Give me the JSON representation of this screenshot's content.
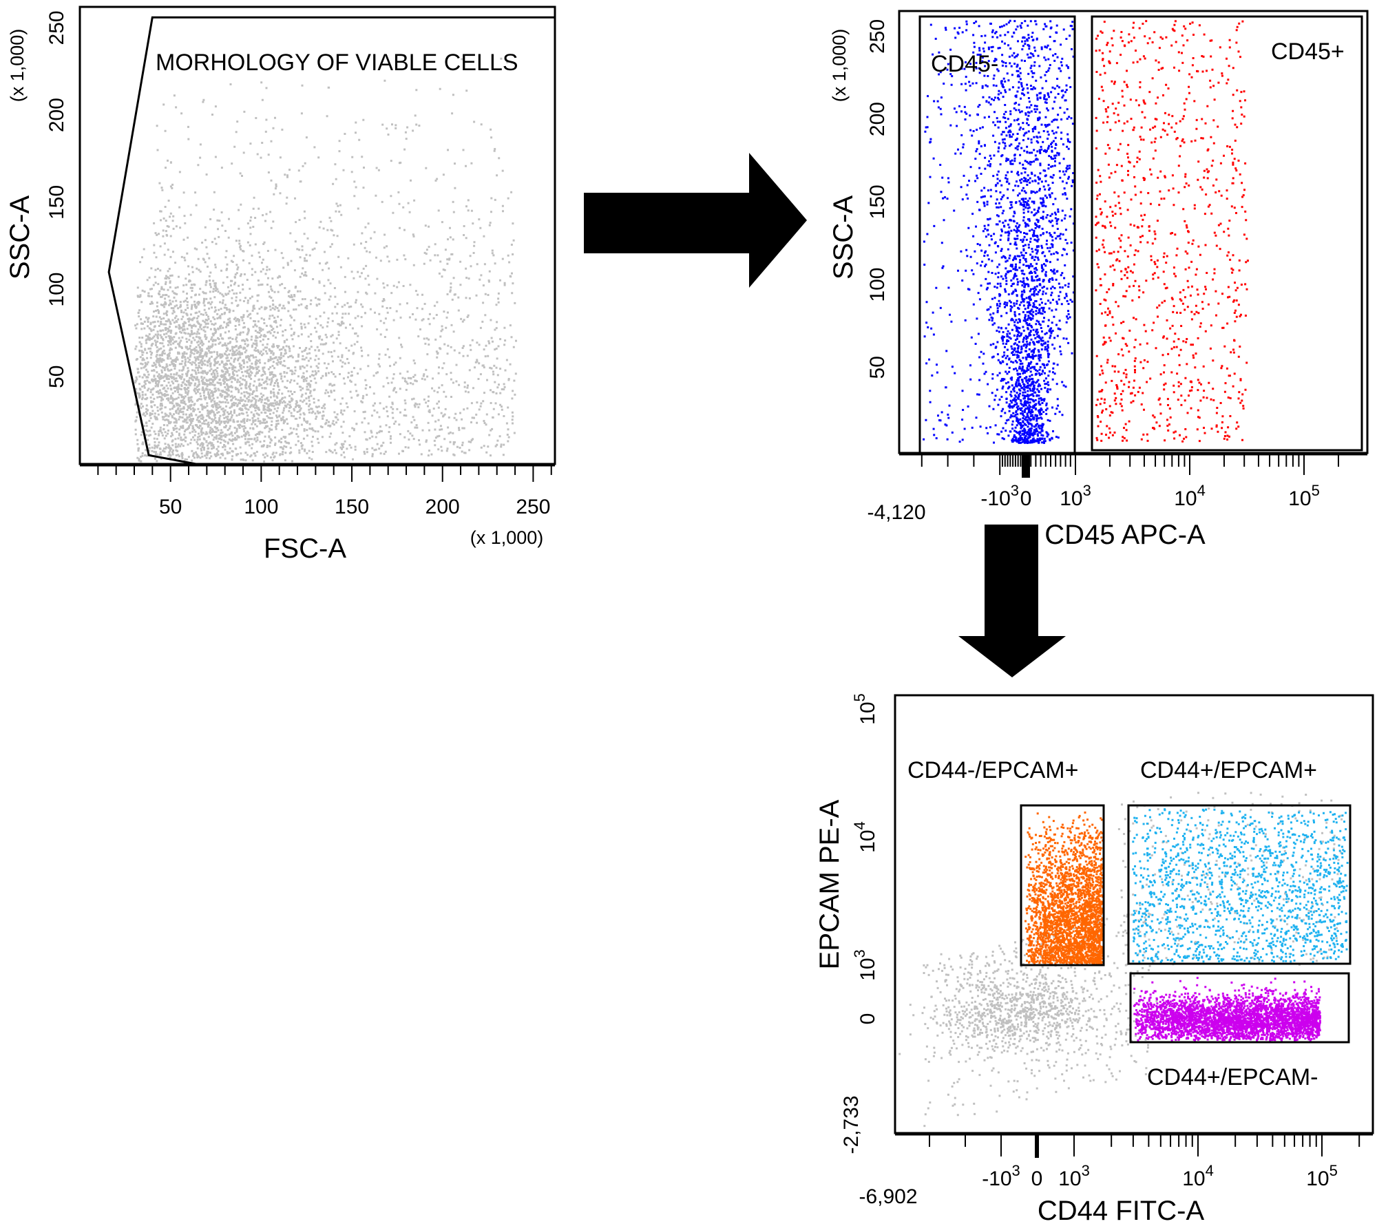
{
  "chart_data": [
    {
      "type": "scatter",
      "title": "",
      "xlabel": "FSC-A",
      "ylabel": "SSC-A",
      "x_unit": "(x 1,000)",
      "y_unit": "(x 1,000)",
      "xlim": [
        0,
        262
      ],
      "ylim": [
        0,
        262
      ],
      "xticks": [
        {
          "v": 50,
          "label": "50"
        },
        {
          "v": 100,
          "label": "100"
        },
        {
          "v": 150,
          "label": "150"
        },
        {
          "v": 200,
          "label": "200"
        },
        {
          "v": 250,
          "label": "250"
        }
      ],
      "yticks": [
        {
          "v": 50,
          "label": "50"
        },
        {
          "v": 100,
          "label": "100"
        },
        {
          "v": 150,
          "label": "150"
        },
        {
          "v": 200,
          "label": "200"
        },
        {
          "v": 250,
          "label": "250"
        }
      ],
      "gate": {
        "name": "MORHOLOGY OF VIABLE CELLS",
        "vertices": [
          [
            38,
            5
          ],
          [
            16,
            110
          ],
          [
            40,
            256
          ],
          [
            262,
            256
          ],
          [
            262,
            0
          ],
          [
            64,
            0
          ]
        ]
      },
      "population": {
        "color": "#c0c0c0",
        "center": [
          65,
          45
        ],
        "spread": [
          35,
          35
        ]
      }
    },
    {
      "type": "scatter",
      "title": "",
      "xlabel": "CD45 APC-A",
      "ylabel": "SSC-A",
      "y_unit": "(x 1,000)",
      "x_min_label": "-4,120",
      "x_scale": "biexponential",
      "ylim": [
        0,
        262
      ],
      "xticks": [
        {
          "v": -1000,
          "label": "-10",
          "exp": "3"
        },
        {
          "v": 0,
          "label": "0"
        },
        {
          "v": 1000,
          "label": "10",
          "exp": "3"
        },
        {
          "v": 10000,
          "label": "10",
          "exp": "4"
        },
        {
          "v": 100000,
          "label": "10",
          "exp": "5"
        }
      ],
      "yticks": [
        {
          "v": 50,
          "label": "50"
        },
        {
          "v": 100,
          "label": "100"
        },
        {
          "v": 150,
          "label": "150"
        },
        {
          "v": 200,
          "label": "200"
        },
        {
          "v": 250,
          "label": "250"
        }
      ],
      "gates": [
        {
          "name": "CD45-",
          "color": "#0000ff",
          "x": [
            -4000,
            1000
          ],
          "y": [
            0,
            262
          ]
        },
        {
          "name": "CD45+",
          "color": "#ff0000",
          "x": [
            1200,
            200000
          ],
          "y": [
            0,
            262
          ]
        }
      ]
    },
    {
      "type": "scatter",
      "title": "",
      "xlabel": "CD44 FITC-A",
      "ylabel": "EPCAM PE-A",
      "x_min_label": "-6,902",
      "y_min_label": "-2,733",
      "x_scale": "biexponential",
      "y_scale": "biexponential",
      "xticks": [
        {
          "v": -1000,
          "label": "-10",
          "exp": "3"
        },
        {
          "v": 0,
          "label": "0"
        },
        {
          "v": 1000,
          "label": "10",
          "exp": "3"
        },
        {
          "v": 10000,
          "label": "10",
          "exp": "4"
        },
        {
          "v": 100000,
          "label": "10",
          "exp": "5"
        }
      ],
      "yticks": [
        {
          "v": 0,
          "label": "0"
        },
        {
          "v": 1000,
          "label": "10",
          "exp": "3"
        },
        {
          "v": 10000,
          "label": "10",
          "exp": "4"
        },
        {
          "v": 100000,
          "label": "10",
          "exp": "5"
        }
      ],
      "gates": [
        {
          "name": "CD44-/EPCAM+",
          "color": "#ff6600",
          "x": [
            100,
            1900
          ],
          "y": [
            1000,
            18000
          ]
        },
        {
          "name": "CD44+/EPCAM+",
          "color": "#1fb2f0",
          "x": [
            3000,
            140000
          ],
          "y": [
            1200,
            18000
          ]
        },
        {
          "name": "CD44+/EPCAM-",
          "color": "#cc00ee",
          "x": [
            3000,
            135000
          ],
          "y": [
            -250,
            900
          ]
        }
      ],
      "background_color": "#c0c0c0"
    }
  ],
  "flow": [
    "plot-1 to plot-2",
    "plot-2 to plot-3"
  ]
}
